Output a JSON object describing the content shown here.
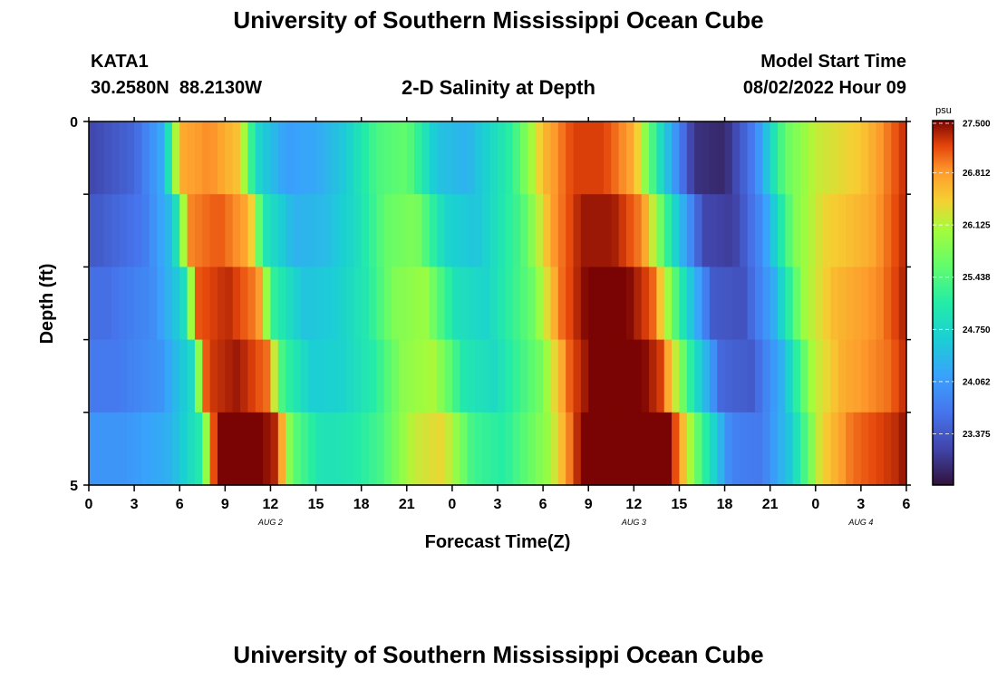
{
  "page": {
    "title": "University of Southern Mississippi Ocean Cube",
    "footer_title": "University of Southern Mississippi Ocean Cube"
  },
  "station": {
    "name": "KATA1",
    "coords": "30.2580N  88.2130W"
  },
  "model": {
    "start_label": "Model Start Time",
    "start_value": "08/02/2022 Hour 09"
  },
  "chart_data": {
    "type": "heatmap",
    "title": "2-D Salinity at Depth",
    "xlabel": "Forecast Time(Z)",
    "ylabel": "Depth (ft)",
    "x_tick_labels": [
      "0",
      "3",
      "6",
      "9",
      "12",
      "15",
      "18",
      "21",
      "0",
      "3",
      "6",
      "9",
      "12",
      "15",
      "18",
      "21",
      "0",
      "3",
      "6"
    ],
    "x_hours_range": [
      0,
      54
    ],
    "day_labels": [
      {
        "label": "AUG 2",
        "hour": 12
      },
      {
        "label": "AUG 3",
        "hour": 36
      },
      {
        "label": "AUG 4",
        "hour": 51
      }
    ],
    "y_tick_labels": [
      "0",
      "5"
    ],
    "ylim": [
      0,
      5
    ],
    "depth_levels_ft": [
      0.5,
      1.5,
      2.5,
      3.5,
      4.5
    ],
    "colorbar": {
      "unit": "psu",
      "min": 22.7,
      "max": 27.5,
      "tick_labels": [
        "27.500",
        "26.812",
        "26.125",
        "25.438",
        "24.750",
        "24.062",
        "23.375"
      ],
      "tick_values": [
        27.5,
        26.812,
        26.125,
        25.438,
        24.75,
        24.062,
        23.375
      ]
    },
    "time_profile_hours": [
      0,
      3,
      5,
      6,
      8,
      10,
      11,
      13,
      15,
      17,
      19,
      21,
      23,
      25,
      28,
      30,
      32,
      34,
      36,
      38,
      40,
      42,
      44,
      46,
      48,
      51,
      54
    ],
    "layer_offsets_psu": [
      0.0,
      0.2,
      0.4,
      0.5,
      0.8
    ],
    "surface_profile_psu": [
      23.2,
      23.5,
      24.3,
      26.7,
      26.9,
      26.5,
      24.8,
      24.1,
      24.2,
      24.6,
      25.4,
      25.6,
      24.5,
      24.3,
      25.2,
      26.6,
      27.2,
      27.2,
      26.7,
      24.6,
      23.0,
      22.9,
      23.8,
      25.6,
      26.2,
      26.5,
      27.3
    ]
  }
}
